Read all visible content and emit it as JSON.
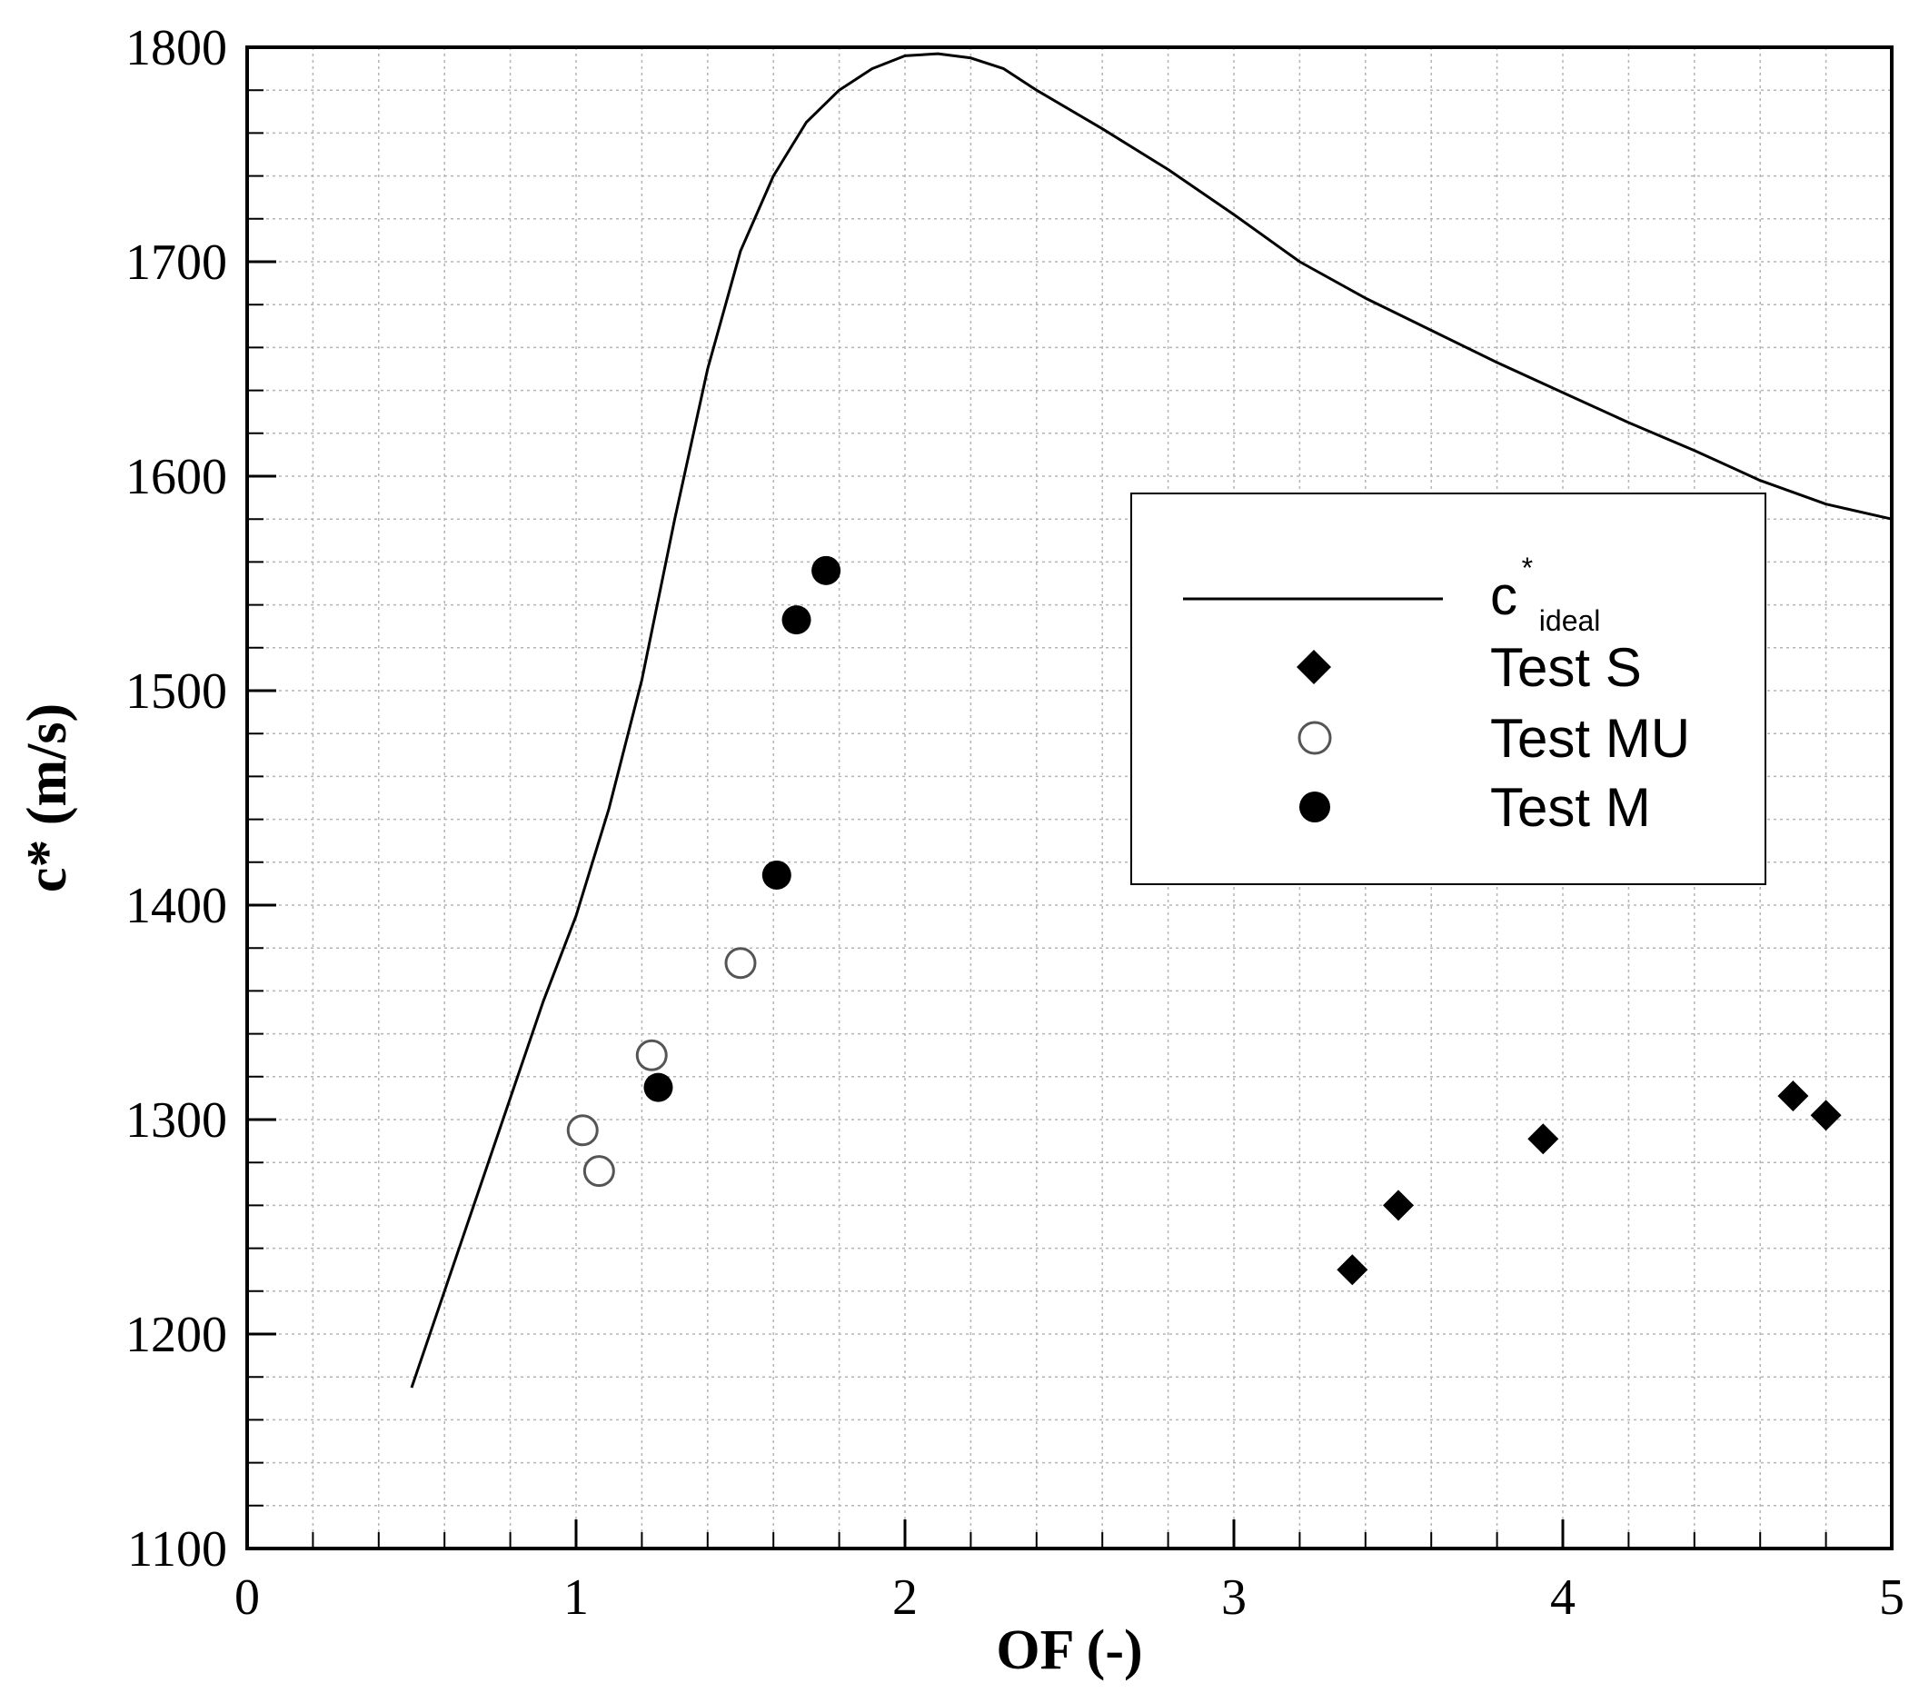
{
  "chart_data": {
    "type": "scatter",
    "title": "",
    "xlabel": "OF (-)",
    "ylabel": "c* (m/s)",
    "xlim": [
      0,
      5
    ],
    "ylim": [
      1100,
      1800
    ],
    "x_ticks": [
      0,
      1,
      2,
      3,
      4,
      5
    ],
    "x_tick_labels": [
      "0",
      "1",
      "2",
      "3",
      "4",
      "5"
    ],
    "y_ticks": [
      1100,
      1200,
      1300,
      1400,
      1500,
      1600,
      1700,
      1800
    ],
    "y_tick_labels": [
      "1100",
      "1200",
      "1300",
      "1400",
      "1500",
      "1600",
      "1700",
      "1800"
    ],
    "x_minor_step": 0.2,
    "y_minor_step": 20,
    "grid": true,
    "legend_position": "right",
    "series": [
      {
        "name": "c*ideal",
        "legend_main": "c",
        "legend_sup": "*",
        "legend_sub": "ideal",
        "kind": "line",
        "x": [
          0.5,
          0.6,
          0.7,
          0.8,
          0.9,
          1.0,
          1.1,
          1.2,
          1.3,
          1.4,
          1.5,
          1.6,
          1.7,
          1.8,
          1.9,
          2.0,
          2.1,
          2.2,
          2.3,
          2.4,
          2.6,
          2.8,
          3.0,
          3.2,
          3.4,
          3.6,
          3.8,
          4.0,
          4.2,
          4.4,
          4.6,
          4.8,
          5.0
        ],
        "y": [
          1175,
          1220,
          1265,
          1310,
          1355,
          1395,
          1445,
          1505,
          1580,
          1650,
          1705,
          1740,
          1765,
          1780,
          1790,
          1796,
          1797,
          1795,
          1790,
          1780,
          1762,
          1743,
          1722,
          1700,
          1683,
          1668,
          1653,
          1639,
          1625,
          1612,
          1598,
          1587,
          1580
        ]
      },
      {
        "name": "Test S",
        "kind": "diamond",
        "x": [
          3.36,
          3.5,
          3.94,
          4.7,
          4.8
        ],
        "y": [
          1230,
          1260,
          1291,
          1311,
          1302
        ]
      },
      {
        "name": "Test MU",
        "kind": "open-circle",
        "x": [
          1.02,
          1.07,
          1.23,
          1.5
        ],
        "y": [
          1295,
          1276,
          1330,
          1373
        ]
      },
      {
        "name": "Test M",
        "kind": "filled-circle",
        "x": [
          1.25,
          1.61,
          1.67,
          1.76
        ],
        "y": [
          1315,
          1414,
          1533,
          1556
        ]
      }
    ]
  }
}
